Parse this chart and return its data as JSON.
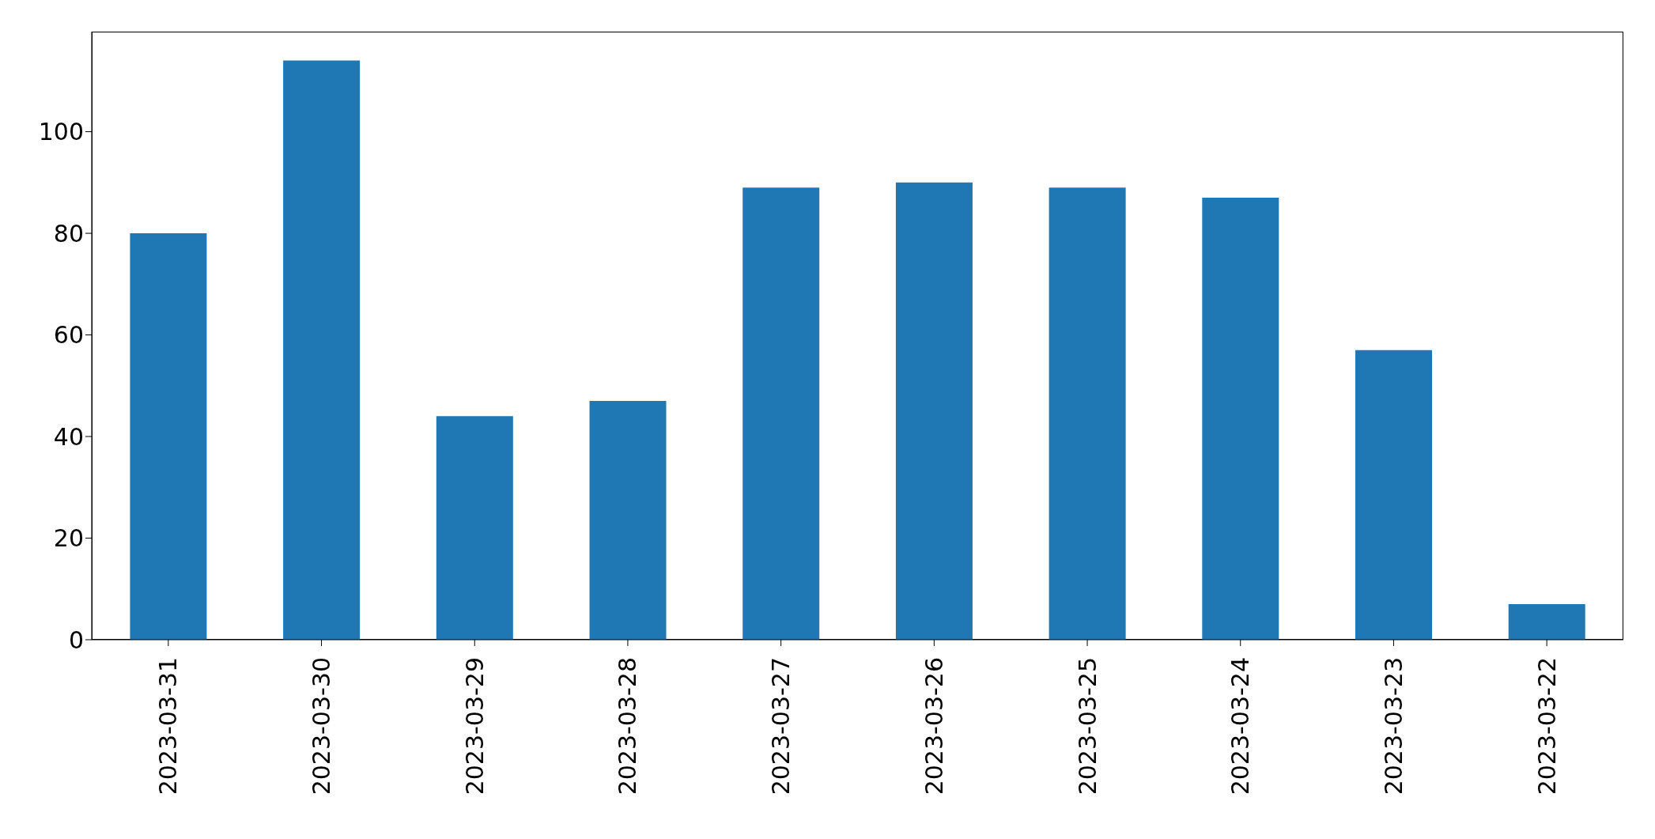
{
  "chart_data": {
    "type": "bar",
    "categories": [
      "2023-03-31",
      "2023-03-30",
      "2023-03-29",
      "2023-03-28",
      "2023-03-27",
      "2023-03-26",
      "2023-03-25",
      "2023-03-24",
      "2023-03-23",
      "2023-03-22"
    ],
    "values": [
      80,
      114,
      44,
      47,
      89,
      90,
      89,
      87,
      57,
      7
    ],
    "color": "#1f77b4",
    "ylim": [
      0,
      119.7
    ],
    "yticks": [
      0,
      20,
      40,
      60,
      80,
      100
    ],
    "grid": false
  }
}
